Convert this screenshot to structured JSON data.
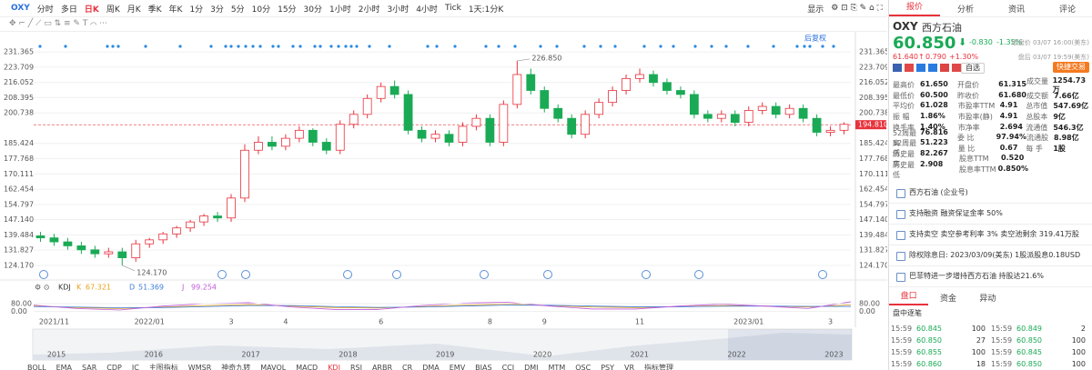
{
  "toolbar": {
    "symbol": "OXY",
    "periods": [
      "分时",
      "多日",
      "日K",
      "周K",
      "月K",
      "季K",
      "年K",
      "1分",
      "3分",
      "5分",
      "10分",
      "15分",
      "30分",
      "1小时",
      "2小时",
      "3小时",
      "4小时",
      "Tick",
      "1天:1分K"
    ],
    "display": "显示",
    "fq": "后复权"
  },
  "chart_data": [
    {
      "type": "candlestick",
      "categories": [
        null,
        "2021/11",
        null,
        null,
        null,
        null,
        null,
        null,
        "2022/01",
        null,
        null,
        null,
        null,
        null,
        "3",
        null,
        null,
        null,
        "4",
        null,
        null,
        null,
        null,
        null,
        null,
        "6",
        null,
        null,
        null,
        null,
        null,
        null,
        null,
        "8",
        null,
        null,
        null,
        "9",
        null,
        null,
        null,
        null,
        null,
        null,
        "11",
        null,
        null,
        null,
        null,
        null,
        null,
        null,
        "2023/01",
        null,
        null,
        null,
        null,
        null,
        "3",
        null
      ],
      "open": [
        139,
        138,
        136,
        134,
        132,
        130,
        131,
        128,
        135,
        137,
        140,
        143,
        146,
        149,
        148,
        158,
        182,
        186,
        184,
        188,
        192,
        186,
        182,
        195,
        200,
        208,
        214,
        210,
        192,
        188,
        190,
        186,
        194,
        198,
        186,
        205,
        220,
        212,
        203,
        198,
        190,
        200,
        206,
        212,
        218,
        220,
        216,
        212,
        210,
        200,
        198,
        200,
        196,
        202,
        204,
        200,
        203,
        198,
        191,
        192
      ],
      "high": [
        141,
        140,
        138,
        136,
        134,
        133,
        133,
        137,
        138,
        141,
        144,
        147,
        150,
        151,
        160,
        185,
        189,
        189,
        190,
        194,
        193,
        188,
        197,
        202,
        210,
        216,
        217,
        212,
        194,
        192,
        192,
        196,
        200,
        200,
        207,
        226.85,
        223,
        214,
        205,
        200,
        202,
        208,
        214,
        220,
        223,
        222,
        218,
        214,
        212,
        202,
        202,
        202,
        204,
        206,
        206,
        205,
        205,
        200,
        194,
        196
      ],
      "low": [
        136,
        134,
        132,
        130,
        128,
        128,
        124.17,
        126,
        133,
        135,
        138,
        141,
        144,
        146,
        146,
        156,
        180,
        182,
        182,
        186,
        184,
        180,
        180,
        193,
        198,
        206,
        208,
        190,
        186,
        186,
        184,
        184,
        192,
        184,
        184,
        203,
        210,
        201,
        196,
        188,
        188,
        198,
        204,
        210,
        216,
        214,
        210,
        208,
        198,
        196,
        196,
        194,
        194,
        200,
        198,
        198,
        196,
        189,
        189,
        190
      ],
      "close": [
        138,
        136,
        134,
        132,
        130,
        131,
        128,
        135,
        137,
        140,
        143,
        146,
        149,
        148,
        158,
        182,
        186,
        184,
        188,
        192,
        186,
        182,
        195,
        200,
        208,
        214,
        210,
        192,
        188,
        190,
        186,
        194,
        198,
        186,
        205,
        220,
        212,
        203,
        198,
        190,
        200,
        206,
        212,
        218,
        220,
        216,
        212,
        210,
        200,
        198,
        200,
        196,
        202,
        204,
        200,
        203,
        198,
        191,
        192,
        195
      ],
      "up_color": "#e8323c",
      "down_color": "#1aaa55",
      "ylim": [
        120.5,
        234.6
      ],
      "yticks": [
        231.365,
        223.709,
        216.052,
        208.395,
        200.738,
        185.424,
        177.768,
        170.111,
        162.454,
        154.797,
        {
          "value": 147.14,
          "label": "147.140"
        },
        139.484,
        131.827,
        {
          "value": 124.17,
          "label": "124.170"
        }
      ],
      "last": {
        "value": 194.81,
        "label": "194.810"
      },
      "annotations": [
        {
          "value": 226.85,
          "label": "226.850"
        },
        {
          "value": 124.17,
          "label": "124.170"
        }
      ],
      "grid": true
    },
    {
      "type": "line",
      "title": "KDJ",
      "series": [
        {
          "name": "K",
          "last": 67.321,
          "color": "#e8a21a",
          "values": [
            55,
            40,
            30,
            45,
            60,
            70,
            55,
            40,
            35,
            50,
            65,
            75,
            60,
            45,
            40,
            50,
            60,
            55,
            45,
            67.321
          ]
        },
        {
          "name": "D",
          "last": 51.369,
          "color": "#3b7ddd",
          "values": [
            50,
            45,
            38,
            40,
            50,
            60,
            60,
            50,
            42,
            45,
            55,
            65,
            63,
            55,
            48,
            48,
            53,
            55,
            52,
            51.369
          ]
        },
        {
          "name": "J",
          "last": 99.254,
          "color": "#c158dc",
          "values": [
            65,
            30,
            15,
            55,
            80,
            90,
            45,
            20,
            20,
            60,
            85,
            95,
            55,
            25,
            25,
            55,
            75,
            55,
            30,
            99.254
          ]
        }
      ],
      "ylim": [
        -50,
        145
      ],
      "yticks": [
        {
          "value": 80,
          "label": "80.00"
        },
        {
          "value": 0,
          "label": "0.00"
        }
      ]
    }
  ],
  "navigator": {
    "years": [
      "2015",
      "2016",
      "2017",
      "2018",
      "2019",
      "2020",
      "2021",
      "2022",
      "2023"
    ]
  },
  "indicators": [
    "BOLL",
    "EMA",
    "SAR",
    "CDP",
    "IC",
    "主图指标",
    "WMSR",
    "神奇九转",
    "MAVOL",
    "MACD",
    "KDJ",
    "RSI",
    "ARBR",
    "CR",
    "DMA",
    "EMV",
    "BIAS",
    "CCI",
    "DMI",
    "MTM",
    "OSC",
    "PSY",
    "VR",
    "指标管理"
  ],
  "quote": {
    "tabs": [
      "报价",
      "分析",
      "资讯",
      "评论"
    ],
    "symbol": "OXY",
    "name": "西方石油",
    "price": "60.850",
    "change": "-0.830",
    "pct": "-1.35%",
    "close_note": "收盘价 03/07 16:00(美东)",
    "after_price": "61.640↑",
    "after_change": "0.790",
    "after_pct": "+1.30%",
    "after_note": "盘后 03/07 19:59(美东)",
    "watch": "自选",
    "trade": "快捷交易",
    "stats": [
      [
        [
          "最高价",
          "61.650"
        ],
        [
          "开盘价",
          "61.315"
        ],
        [
          "成交量",
          "1254.73万"
        ]
      ],
      [
        [
          "最低价",
          "60.500"
        ],
        [
          "昨收价",
          "61.680"
        ],
        [
          "成交额",
          "7.66亿"
        ]
      ],
      [
        [
          "平均价",
          "61.028"
        ],
        [
          "市盈率TTM",
          "4.91"
        ],
        [
          "总市值",
          "547.69亿"
        ]
      ],
      [
        [
          "振 幅",
          "1.86%"
        ],
        [
          "市盈率(静)",
          "4.91"
        ],
        [
          "总股本",
          "9亿"
        ]
      ],
      [
        [
          "换手率",
          "1.40%"
        ],
        [
          "市净率",
          "2.694"
        ],
        [
          "流通值",
          "546.3亿"
        ]
      ],
      [
        [
          "52周最高",
          "76.816"
        ],
        [
          "委 比",
          "97.94%"
        ],
        [
          "流通股",
          "8.98亿"
        ]
      ],
      [
        [
          "52周最低",
          "51.223"
        ],
        [
          "量 比",
          "0.67"
        ],
        [
          "每 手",
          "1股"
        ]
      ],
      [
        [
          "历史最高",
          "82.267"
        ],
        [
          "股息TTM",
          "0.520"
        ]
      ],
      [
        [
          "历史最低",
          "2.908"
        ],
        [
          "股息率TTM",
          "0.850%"
        ]
      ]
    ],
    "notices": [
      "西方石油 (企业号)",
      "支持融资 融资保证金率 50%",
      "支持卖空 卖空参考利率 3% 卖空池剩余 319.41万股",
      "除权除息日: 2023/03/09(美东) 1股派股息0.18USD",
      "巴菲特进一步增持西方石油 持股达21.6%"
    ],
    "book_tabs": [
      "盘口",
      "资金",
      "异动"
    ],
    "ticks_title": "盘中逐笔",
    "trades": [
      [
        [
          "15:59",
          "60.845",
          "100"
        ],
        [
          "15:59",
          "60.849",
          "2"
        ]
      ],
      [
        [
          "15:59",
          "60.850",
          "27"
        ],
        [
          "15:59",
          "60.850",
          "100"
        ]
      ],
      [
        [
          "15:59",
          "60.855",
          "100"
        ],
        [
          "15:59",
          "60.845",
          "100"
        ]
      ],
      [
        [
          "15:59",
          "60.860",
          "18"
        ],
        [
          "15:59",
          "60.850",
          "100"
        ]
      ]
    ]
  }
}
